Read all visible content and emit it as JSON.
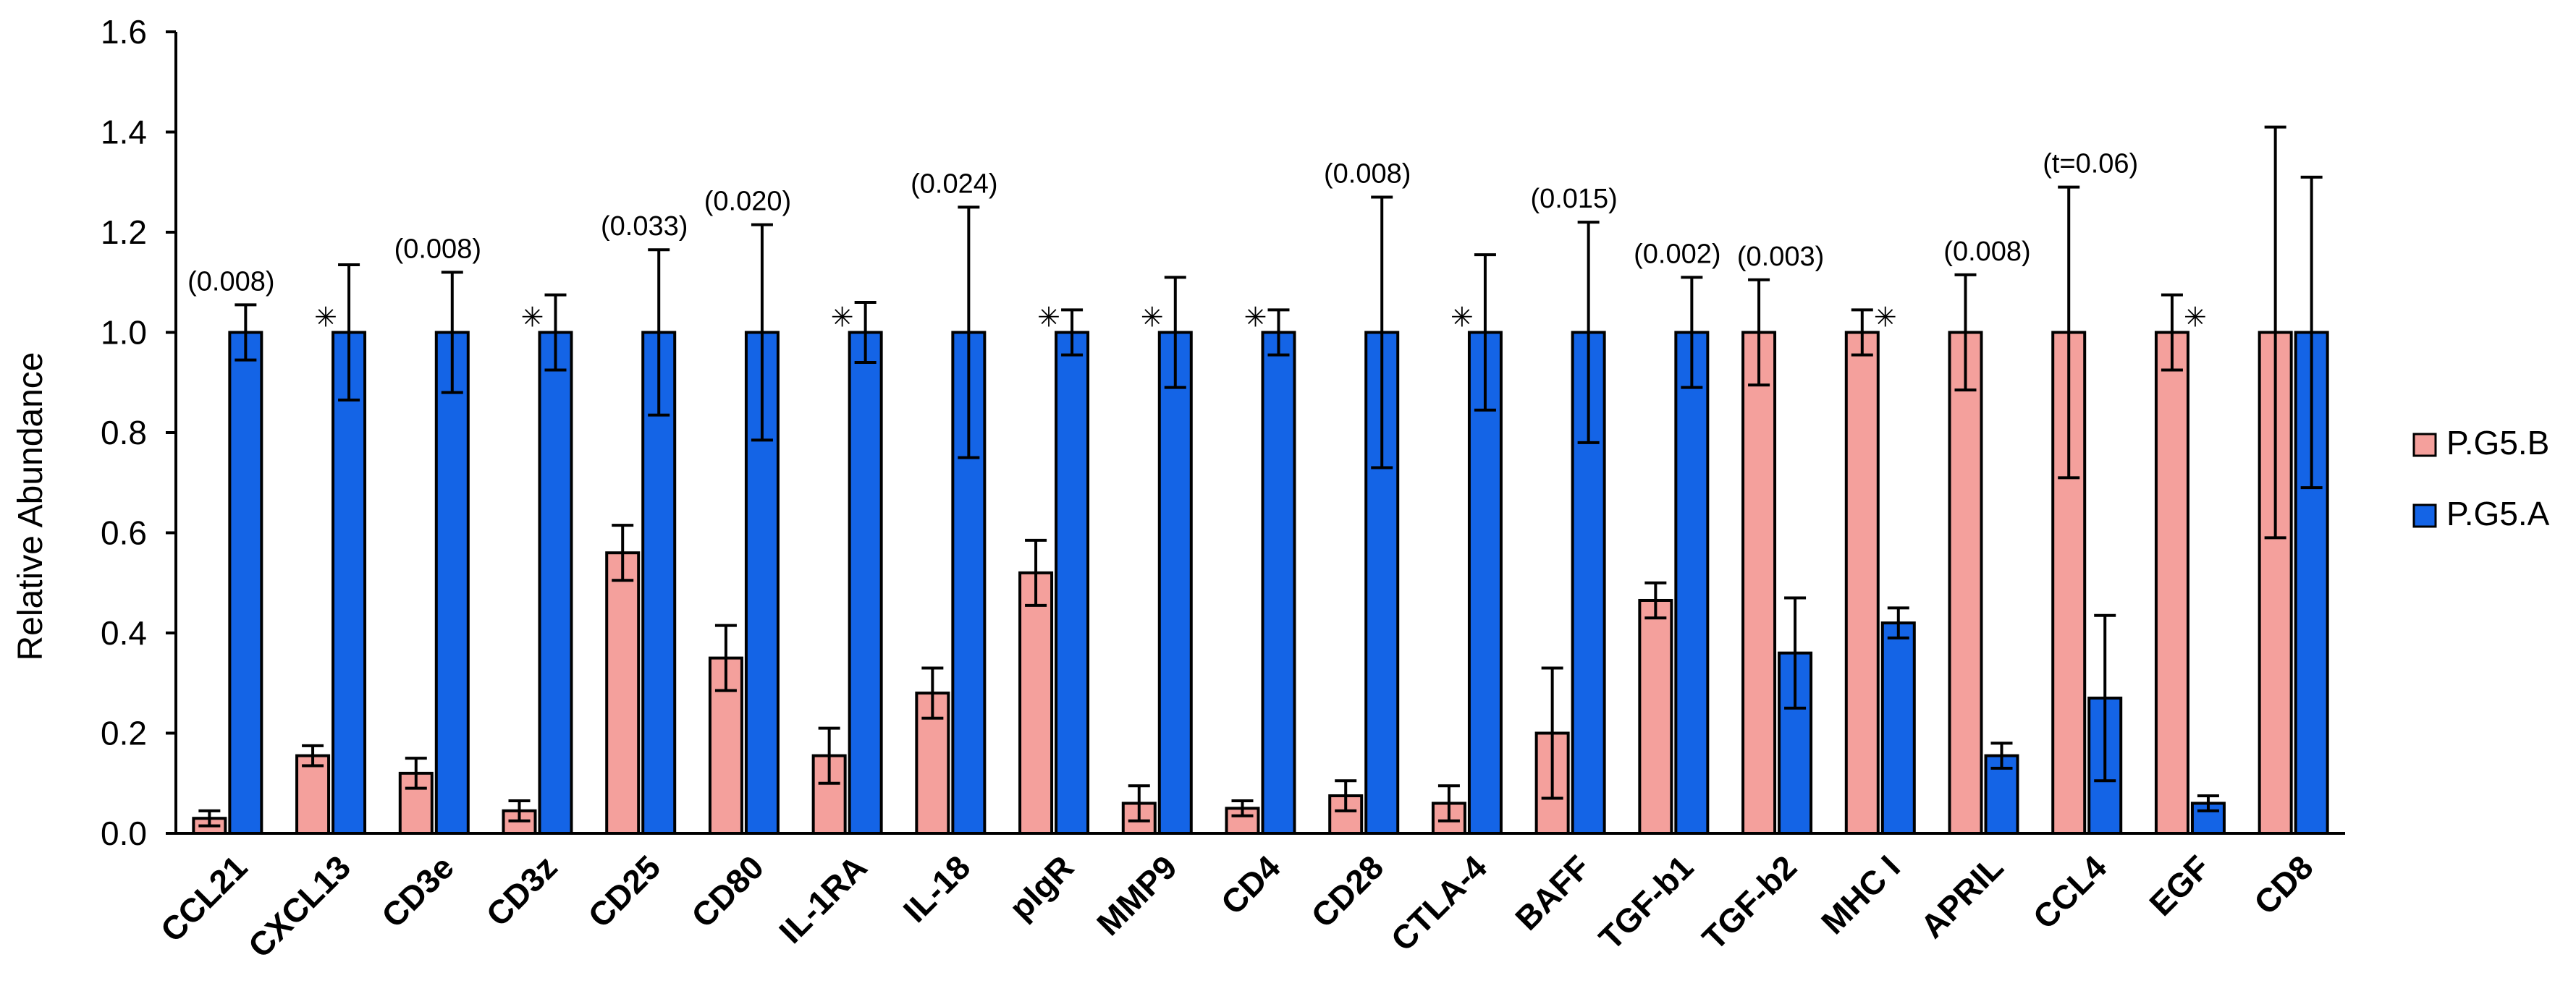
{
  "chart_data": {
    "type": "bar",
    "title": "",
    "xlabel": "",
    "ylabel": "Relative Abundance",
    "ylim": [
      0,
      1.6
    ],
    "yticks": [
      0.0,
      0.2,
      0.4,
      0.6,
      0.8,
      1.0,
      1.2,
      1.4,
      1.6
    ],
    "ytick_labels": [
      "0.0",
      "0.2",
      "0.4",
      "0.6",
      "0.8",
      "1.0",
      "1.2",
      "1.4",
      "1.6"
    ],
    "grid": false,
    "legend_position": "right",
    "categories": [
      "CCL21",
      "CXCL13",
      "CD3e",
      "CD3z",
      "CD25",
      "CD80",
      "IL-1RA",
      "IL-18",
      "pIgR",
      "MMP9",
      "CD4",
      "CD28",
      "CTLA-4",
      "BAFF",
      "TGF-b1",
      "TGF-b2",
      "MHC I",
      "APRIL",
      "CCL4",
      "EGF",
      "CD8"
    ],
    "series": [
      {
        "name": "P.G5.B",
        "color": "#f4a09c",
        "values": [
          0.03,
          0.155,
          0.12,
          0.045,
          0.56,
          0.35,
          0.155,
          0.28,
          0.52,
          0.06,
          0.05,
          0.075,
          0.06,
          0.2,
          0.465,
          1.0,
          1.0,
          1.0,
          1.0,
          1.0,
          1.0
        ],
        "errors": [
          0.015,
          0.02,
          0.03,
          0.02,
          0.055,
          0.065,
          0.055,
          0.05,
          0.065,
          0.035,
          0.015,
          0.03,
          0.035,
          0.13,
          0.035,
          0.105,
          0.045,
          0.115,
          0.29,
          0.075,
          0.41
        ]
      },
      {
        "name": "P.G5.A",
        "color": "#1464e6",
        "values": [
          1.0,
          1.0,
          1.0,
          1.0,
          1.0,
          1.0,
          1.0,
          1.0,
          1.0,
          1.0,
          1.0,
          1.0,
          1.0,
          1.0,
          1.0,
          0.36,
          0.42,
          0.155,
          0.27,
          0.06,
          1.0
        ],
        "errors": [
          0.055,
          0.135,
          0.12,
          0.075,
          0.165,
          0.215,
          0.06,
          0.25,
          0.045,
          0.11,
          0.045,
          0.27,
          0.155,
          0.22,
          0.11,
          0.11,
          0.03,
          0.025,
          0.165,
          0.015,
          0.31
        ]
      }
    ],
    "annotations": [
      {
        "category": "CCL21",
        "text": "(0.008)"
      },
      {
        "category": "CXCL13",
        "text": "✳"
      },
      {
        "category": "CD3e",
        "text": "(0.008)"
      },
      {
        "category": "CD3z",
        "text": "✳"
      },
      {
        "category": "CD25",
        "text": "(0.033)"
      },
      {
        "category": "CD80",
        "text": "(0.020)"
      },
      {
        "category": "IL-1RA",
        "text": "✳"
      },
      {
        "category": "IL-18",
        "text": "(0.024)"
      },
      {
        "category": "pIgR",
        "text": "✳"
      },
      {
        "category": "MMP9",
        "text": "✳"
      },
      {
        "category": "CD4",
        "text": "✳"
      },
      {
        "category": "CD28",
        "text": "(0.008)"
      },
      {
        "category": "CTLA-4",
        "text": "✳"
      },
      {
        "category": "BAFF",
        "text": "(0.015)"
      },
      {
        "category": "TGF-b1",
        "text": "(0.002)"
      },
      {
        "category": "TGF-b2",
        "text": "(0.003)"
      },
      {
        "category": "MHC I",
        "text": "✳"
      },
      {
        "category": "APRIL",
        "text": "(0.008)"
      },
      {
        "category": "CCL4",
        "text": "(t=0.06)"
      },
      {
        "category": "EGF",
        "text": "✳"
      }
    ]
  }
}
